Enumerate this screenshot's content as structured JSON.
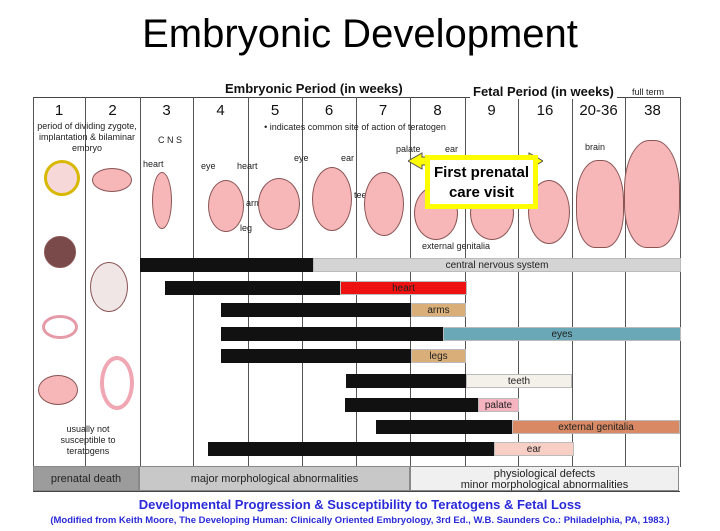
{
  "title": "Embryonic Development",
  "periods": {
    "embryonic": "Embryonic Period (in weeks)",
    "fetal": "Fetal Period (in weeks)",
    "full_term": "full term"
  },
  "weeks": [
    "1",
    "2",
    "3",
    "4",
    "5",
    "6",
    "7",
    "8",
    "9",
    "16",
    "20-36",
    "38"
  ],
  "notes": {
    "dividing": "period of dividing zygote, implantation & bilaminar embryo",
    "teratogen_site": "• indicates common site of action of teratogen",
    "not_susceptible": "usually not susceptible to teratogens"
  },
  "organ_labels": {
    "cns": "C N S",
    "heart3": "heart",
    "eye4": "eye",
    "heart4": "heart",
    "arms": "arms",
    "leg": "leg",
    "eye5": "eye",
    "ear6": "ear",
    "teeth": "teeth",
    "palate": "palate",
    "ear8": "ear",
    "external_genitalia": "external genitalia",
    "brain": "brain"
  },
  "callout": {
    "text": "First prenatal care visit",
    "color": "#ffff00"
  },
  "bars": [
    {
      "label": "central nervous system",
      "color": "#d4d4d4"
    },
    {
      "label": "heart",
      "color": "#ee1111"
    },
    {
      "label": "arms",
      "color": "#d9ae78"
    },
    {
      "label": "eyes",
      "color": "#6aa8b8"
    },
    {
      "label": "legs",
      "color": "#d9ae78"
    },
    {
      "label": "teeth",
      "color": "#f4f0ea"
    },
    {
      "label": "palate",
      "color": "#f6b3c0"
    },
    {
      "label": "external genitalia",
      "color": "#d98a64"
    },
    {
      "label": "ear",
      "color": "#f8cfc4"
    }
  ],
  "outcomes": {
    "prenatal_death": "prenatal death",
    "major": "major morphological abnormalities",
    "physiological": "physiological defects",
    "minor": "minor morphological abnormalities"
  },
  "caption": "Developmental Progression & Susceptibility to Teratogens & Fetal Loss",
  "reference": "(Modified from Keith Moore, The Developing Human: Clinically Oriented Embryology, 3rd Ed., W.B. Saunders Co.: Philadelphia, PA, 1983.)"
}
